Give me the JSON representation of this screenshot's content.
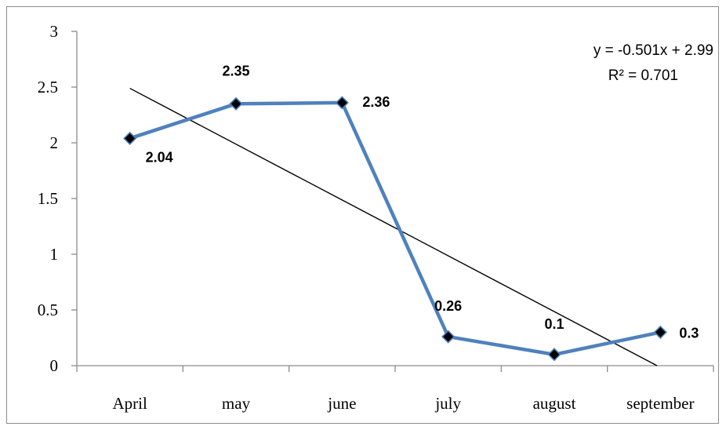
{
  "chart_data": {
    "type": "line",
    "categories": [
      "April",
      "may",
      "june",
      "july",
      "august",
      "september"
    ],
    "series": [
      {
        "values": [
          2.04,
          2.35,
          2.36,
          0.26,
          0.1,
          0.3
        ],
        "color": "#4f81bd",
        "marker": "diamond"
      }
    ],
    "data_labels": [
      "2.04",
      "2.35",
      "2.36",
      "0.26",
      "0.1",
      "0.3"
    ],
    "trendline": {
      "slope": -0.501,
      "intercept": 2.99,
      "color": "#000000"
    },
    "annotations": [
      "y = -0.501x + 2.99",
      "R² = 0.701"
    ],
    "y_ticks": [
      "0",
      "0.5",
      "1",
      "1.5",
      "2",
      "2.5",
      "3"
    ],
    "ylim": [
      0,
      3
    ],
    "grid": false,
    "title": "",
    "xlabel": "",
    "ylabel": ""
  }
}
